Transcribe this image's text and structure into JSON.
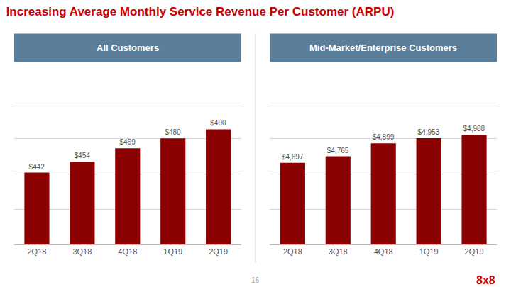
{
  "title": "Increasing Average Monthly Service Revenue Per Customer (ARPU)",
  "annotations": [
    "16",
    "8x8"
  ],
  "chart_data": [
    {
      "type": "bar",
      "title": "All Customers",
      "categories": [
        "2Q18",
        "3Q18",
        "4Q18",
        "1Q19",
        "2Q19"
      ],
      "values": [
        442,
        454,
        469,
        480,
        490
      ],
      "value_labels": [
        "$442",
        "$454",
        "$469",
        "$480",
        "$490"
      ],
      "color": "#8B0000",
      "ylim": [
        362.44,
        558.6
      ],
      "yticks": [
        362.44,
        401.672,
        440.904,
        480.136,
        519.368,
        558.6
      ],
      "grid": true,
      "data_labels": true,
      "tick_labels": "x"
    },
    {
      "type": "bar",
      "title": "Mid-Market/Enterprise Customers",
      "categories": [
        "2Q18",
        "3Q18",
        "4Q18",
        "1Q19",
        "2Q19"
      ],
      "values": [
        4697,
        4765,
        4899,
        4953,
        4988
      ],
      "value_labels": [
        "$4,697",
        "$4,765",
        "$4,899",
        "$4,953",
        "$4,988"
      ],
      "color": "#8B0000",
      "ylim": [
        3851.54,
        5686.32
      ],
      "yticks": [
        3851.54,
        4218.496,
        4585.452,
        4952.408,
        5319.364,
        5686.32
      ],
      "grid": true,
      "data_labels": true,
      "tick_labels": "x"
    }
  ]
}
